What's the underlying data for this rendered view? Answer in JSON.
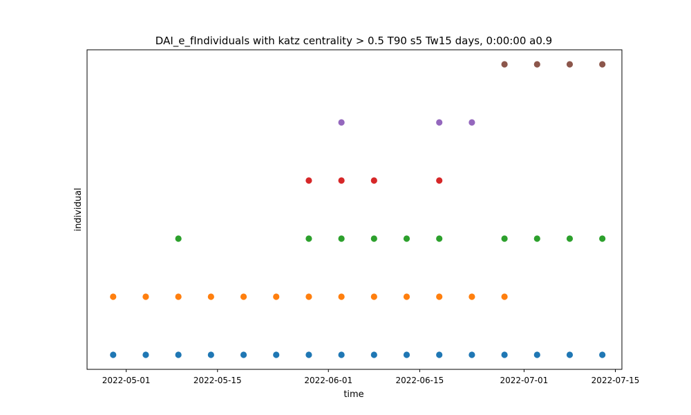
{
  "chart_data": {
    "type": "scatter",
    "title": "DAI_e_fIndividuals with katz centrality > 0.5 T90 s5 Tw15 days, 0:00:00 a0.9",
    "xlabel": "time",
    "ylabel": "individual",
    "x_ticks": [
      "2022-05-01",
      "2022-05-15",
      "2022-06-01",
      "2022-06-15",
      "2022-07-01",
      "2022-07-15"
    ],
    "xlim": [
      "2022-04-25",
      "2022-07-16"
    ],
    "ylim": [
      -0.25,
      5.25
    ],
    "y_ticks_visible": false,
    "grid": false,
    "series": [
      {
        "color": "#1f77b4",
        "y": 0,
        "x": [
          "2022-04-29",
          "2022-05-04",
          "2022-05-09",
          "2022-05-14",
          "2022-05-19",
          "2022-05-24",
          "2022-05-29",
          "2022-06-03",
          "2022-06-08",
          "2022-06-13",
          "2022-06-18",
          "2022-06-23",
          "2022-06-28",
          "2022-07-03",
          "2022-07-08",
          "2022-07-13"
        ]
      },
      {
        "color": "#ff7f0e",
        "y": 1,
        "x": [
          "2022-04-29",
          "2022-05-04",
          "2022-05-09",
          "2022-05-14",
          "2022-05-19",
          "2022-05-24",
          "2022-05-29",
          "2022-06-03",
          "2022-06-08",
          "2022-06-13",
          "2022-06-18",
          "2022-06-23",
          "2022-06-28"
        ]
      },
      {
        "color": "#2ca02c",
        "y": 2,
        "x": [
          "2022-05-09",
          "2022-05-29",
          "2022-06-03",
          "2022-06-08",
          "2022-06-13",
          "2022-06-18",
          "2022-06-28",
          "2022-07-03",
          "2022-07-08",
          "2022-07-13"
        ]
      },
      {
        "color": "#d62728",
        "y": 3,
        "x": [
          "2022-05-29",
          "2022-06-03",
          "2022-06-08",
          "2022-06-18"
        ]
      },
      {
        "color": "#9467bd",
        "y": 4,
        "x": [
          "2022-06-03",
          "2022-06-18",
          "2022-06-23"
        ]
      },
      {
        "color": "#8c564b",
        "y": 5,
        "x": [
          "2022-06-28",
          "2022-07-03",
          "2022-07-08",
          "2022-07-13"
        ]
      }
    ]
  }
}
